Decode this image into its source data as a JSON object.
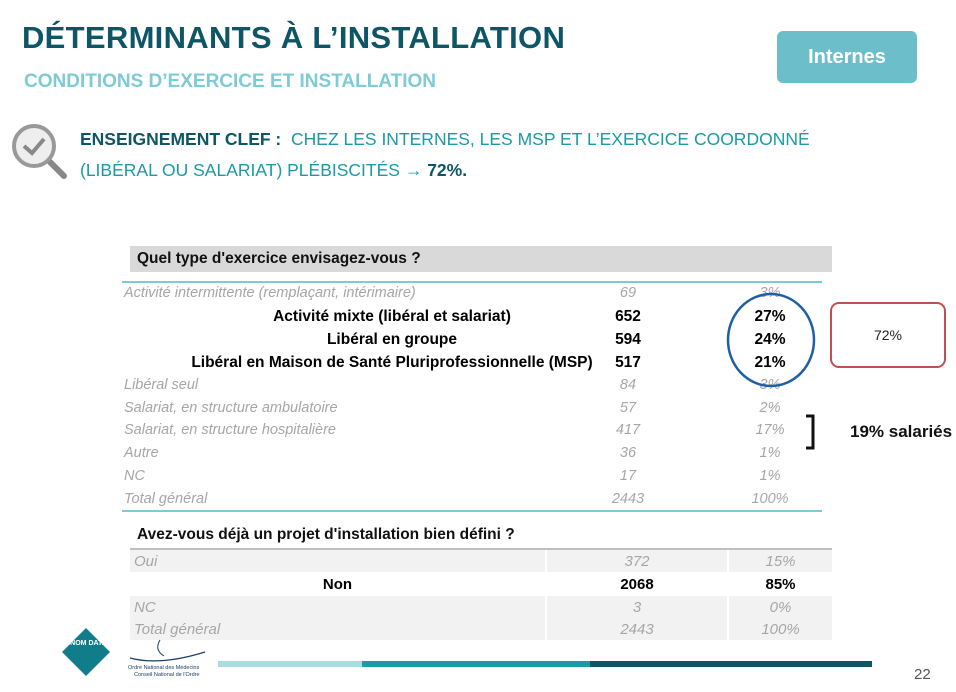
{
  "header": {
    "title": "DÉTERMINANTS À L’INSTALLATION",
    "subtitle": "CONDITIONS D’EXERCICE ET INSTALLATION",
    "badge": "Internes"
  },
  "key_lesson": {
    "label": "ENSEIGNEMENT CLEF :",
    "text_1": "CHEZ LES INTERNES, LES MSP ET L’EXERCICE COORDONNÉ",
    "text_2": "(LIBÉRAL OU SALARIAT) PLÉBISCITÉS →",
    "highlight": "72%."
  },
  "table1": {
    "title": "Quel type d'exercice envisagez-vous ?",
    "rows": [
      [
        "Activité intermittente (remplaçant, intérimaire)",
        69,
        "3%"
      ],
      [
        "Activité mixte (libéral et salariat)",
        652,
        "27%"
      ],
      [
        "Libéral en groupe",
        594,
        "24%"
      ],
      [
        "Libéral en Maison de Santé Pluriprofessionnelle (MSP)",
        517,
        "21%"
      ],
      [
        "Libéral seul",
        84,
        "3%"
      ],
      [
        "Salariat, en structure ambulatoire",
        57,
        "2%"
      ],
      [
        "Salariat, en structure hospitalière",
        417,
        "17%"
      ],
      [
        "Autre",
        36,
        "1%"
      ],
      [
        "NC",
        17,
        "1%"
      ],
      [
        "Total général",
        2443,
        "100%"
      ]
    ]
  },
  "callout": "72%",
  "annotation": "19% salariés",
  "table2": {
    "title": "Avez-vous déjà un projet d'installation bien défini ?",
    "rows": [
      [
        "Oui",
        372,
        "15%"
      ],
      [
        "Non",
        2068,
        "85%"
      ],
      [
        "NC",
        3,
        "0%"
      ],
      [
        "Total général",
        2443,
        "100%"
      ]
    ]
  },
  "footer": {
    "logo": "CNOM DATA",
    "org_1": "Ordre National des Médecins",
    "org_2": "Conseil National de l'Ordre",
    "page": 22
  }
}
